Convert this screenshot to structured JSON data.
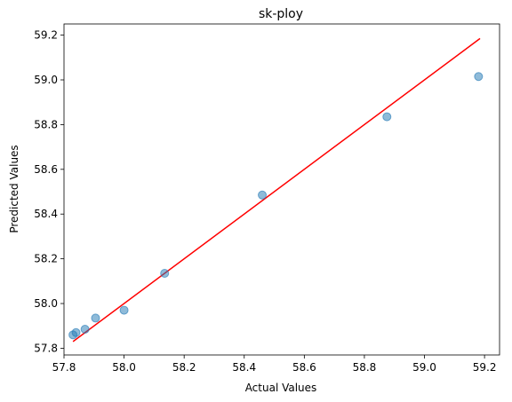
{
  "chart_data": {
    "type": "scatter",
    "title": "sk-ploy",
    "xlabel": "Actual Values",
    "ylabel": "Predicted Values",
    "xlim": [
      57.8,
      59.25
    ],
    "ylim": [
      57.77,
      59.25
    ],
    "xticks": [
      57.8,
      58.0,
      58.2,
      58.4,
      58.6,
      58.8,
      59.0,
      59.2
    ],
    "yticks": [
      57.8,
      58.0,
      58.2,
      58.4,
      58.6,
      58.8,
      59.0,
      59.2
    ],
    "grid": false,
    "colors": {
      "points": "#1f77b4",
      "line": "#ff0000"
    },
    "points": [
      {
        "x": 57.83,
        "y": 57.86
      },
      {
        "x": 57.84,
        "y": 57.87
      },
      {
        "x": 57.87,
        "y": 57.885
      },
      {
        "x": 57.905,
        "y": 57.935
      },
      {
        "x": 58.0,
        "y": 57.97
      },
      {
        "x": 58.135,
        "y": 58.135
      },
      {
        "x": 58.46,
        "y": 58.485
      },
      {
        "x": 58.875,
        "y": 58.835
      },
      {
        "x": 59.18,
        "y": 59.015
      }
    ],
    "reference_line": {
      "x": [
        57.83,
        59.185
      ],
      "y": [
        57.83,
        59.185
      ]
    }
  }
}
